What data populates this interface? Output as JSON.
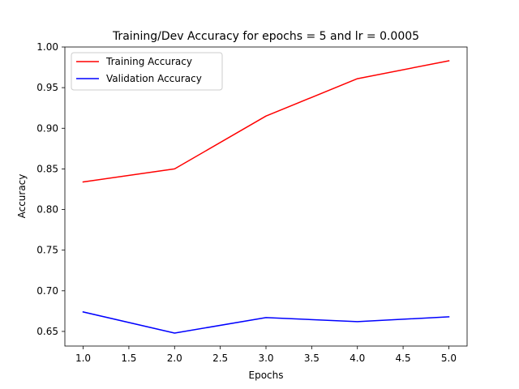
{
  "chart_data": {
    "type": "line",
    "title": "Training/Dev Accuracy for epochs = 5 and lr = 0.0005",
    "xlabel": "Epochs",
    "ylabel": "Accuracy",
    "x": [
      1,
      2,
      3,
      4,
      5
    ],
    "xlim": [
      0.8,
      5.2
    ],
    "ylim": [
      0.632,
      1.0
    ],
    "xticks": [
      1.0,
      1.5,
      2.0,
      2.5,
      3.0,
      3.5,
      4.0,
      4.5,
      5.0
    ],
    "xtick_labels": [
      "1.0",
      "1.5",
      "2.0",
      "2.5",
      "3.0",
      "3.5",
      "4.0",
      "4.5",
      "5.0"
    ],
    "yticks": [
      0.65,
      0.7,
      0.75,
      0.8,
      0.85,
      0.9,
      0.95,
      1.0
    ],
    "ytick_labels": [
      "0.65",
      "0.70",
      "0.75",
      "0.80",
      "0.85",
      "0.90",
      "0.95",
      "1.00"
    ],
    "grid": false,
    "legend_position": "top-left",
    "series": [
      {
        "name": "Training Accuracy",
        "color": "#ff0000",
        "values": [
          0.834,
          0.85,
          0.915,
          0.961,
          0.983
        ]
      },
      {
        "name": "Validation Accuracy",
        "color": "#0000ff",
        "values": [
          0.674,
          0.648,
          0.667,
          0.662,
          0.668
        ]
      }
    ]
  }
}
